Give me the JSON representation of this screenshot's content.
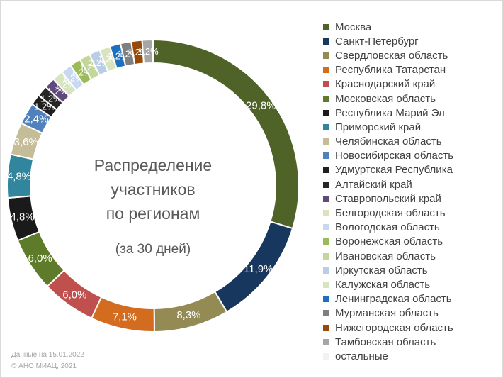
{
  "chart_data": {
    "type": "pie",
    "title": "Распределение участников по регионам",
    "title_lines": [
      "Распределение",
      "участников",
      "по регионам"
    ],
    "subtitle": "(за 30 дней)",
    "legend_position": "right",
    "slices": [
      {
        "name": "Москва",
        "value": 29.8,
        "label": "29,8%",
        "color": "#4f6228"
      },
      {
        "name": "Санкт-Петербург",
        "value": 11.9,
        "label": "11,9%",
        "color": "#17375e"
      },
      {
        "name": "Свердловская область",
        "value": 8.3,
        "label": "8,3%",
        "color": "#948a54"
      },
      {
        "name": "Республика Татарстан",
        "value": 7.1,
        "label": "7,1%",
        "color": "#d46c1f"
      },
      {
        "name": "Краснодарский край",
        "value": 6.0,
        "label": "6,0%",
        "color": "#c0504d"
      },
      {
        "name": "Московская область",
        "value": 6.0,
        "label": "6,0%",
        "color": "#5e7b2a"
      },
      {
        "name": "Республика Марий Эл",
        "value": 4.8,
        "label": "4,8%",
        "color": "#1a1a1a"
      },
      {
        "name": "Приморский край",
        "value": 4.8,
        "label": "4,8%",
        "color": "#31859c"
      },
      {
        "name": "Челябинская область",
        "value": 3.6,
        "label": "3,6%",
        "color": "#c4bd97"
      },
      {
        "name": "Новосибирская область",
        "value": 2.4,
        "label": "2,4%",
        "color": "#4f81bd"
      },
      {
        "name": "Удмуртская Республика",
        "value": 1.2,
        "label": "1,2%",
        "color": "#1f1f1f"
      },
      {
        "name": "Алтайский край",
        "value": 1.2,
        "label": "1,2%",
        "color": "#262626"
      },
      {
        "name": "Ставропольский край",
        "value": 1.2,
        "label": "1,2%",
        "color": "#604a7b"
      },
      {
        "name": "Белгородская область",
        "value": 1.2,
        "label": "1,2%",
        "color": "#d7e4bd"
      },
      {
        "name": "Вологодская область",
        "value": 1.2,
        "label": "1,2%",
        "color": "#c6d9f1"
      },
      {
        "name": "Воронежская область",
        "value": 1.2,
        "label": "1,2%",
        "color": "#9bbb59"
      },
      {
        "name": "Ивановская область",
        "value": 1.2,
        "label": "1,2%",
        "color": "#c3d69b"
      },
      {
        "name": "Иркутская область",
        "value": 1.2,
        "label": "1,2%",
        "color": "#b9cde5"
      },
      {
        "name": "Калужская область",
        "value": 1.2,
        "label": "1,2%",
        "color": "#d7e4bd"
      },
      {
        "name": "Ленинградская область",
        "value": 1.2,
        "label": "1,2%",
        "color": "#1f6fc0"
      },
      {
        "name": "Мурманская область",
        "value": 1.2,
        "label": "1,2%",
        "color": "#7f7f7f"
      },
      {
        "name": "Нижегородская область",
        "value": 1.2,
        "label": "1,2%",
        "color": "#984807"
      },
      {
        "name": "Тамбовская область",
        "value": 1.2,
        "label": "1,2%",
        "color": "#a6a6a6"
      },
      {
        "name": "остальные",
        "value": 0.0,
        "label": "0,0%",
        "color": "#f2f2f2"
      }
    ]
  },
  "footer": {
    "date_note": "Данные на 15.01.2022",
    "copyright": "© АНО МИАЦ, 2021"
  }
}
